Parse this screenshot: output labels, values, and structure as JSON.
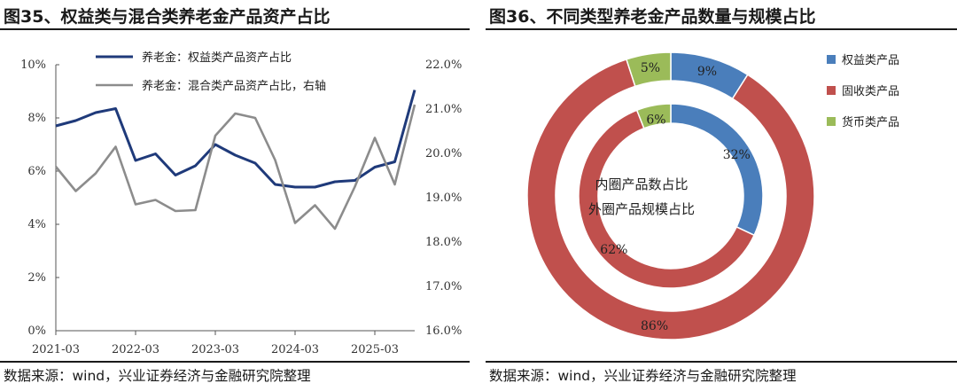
{
  "left_panel": {
    "figure_title": "图35、权益类与混合类养老金产品资产占比",
    "source": "数据来源：wind，兴业证券经济与金融研究院整理"
  },
  "right_panel": {
    "figure_title": "图36、不同类型养老金产品数量与规模占比",
    "source": "数据来源：wind，兴业证券经济与金融研究院整理"
  },
  "chart_data": [
    {
      "type": "line",
      "x_tick_labels": [
        "2021-03",
        "2022-03",
        "2023-03",
        "2024-03",
        "2025-03"
      ],
      "left_axis": {
        "ticks": [
          "0%",
          "2%",
          "4%",
          "6%",
          "8%",
          "10%"
        ],
        "ylim": [
          0,
          10
        ]
      },
      "right_axis": {
        "ticks": [
          "16.0%",
          "17.0%",
          "18.0%",
          "19.0%",
          "20.0%",
          "21.0%",
          "22.0%"
        ],
        "ylim": [
          16,
          22
        ]
      },
      "series": [
        {
          "name": "养老金：权益类产品资产占比",
          "axis": "left",
          "color": "#1f3a7a",
          "values": [
            7.7,
            7.9,
            8.2,
            8.35,
            6.4,
            6.65,
            5.85,
            6.2,
            7.0,
            6.6,
            6.3,
            5.5,
            5.4,
            5.4,
            5.6,
            5.65,
            6.15,
            6.35,
            9.05
          ]
        },
        {
          "name": "养老金：混合类产品资产占比，右轴",
          "axis": "right",
          "color": "#8c8c8c",
          "values": [
            19.7,
            19.15,
            19.55,
            20.15,
            18.85,
            18.95,
            18.7,
            18.72,
            20.4,
            20.9,
            20.8,
            19.85,
            18.43,
            18.83,
            18.3,
            19.25,
            20.35,
            19.3,
            21.1
          ]
        }
      ],
      "legend_position": "top"
    },
    {
      "type": "pie",
      "variant": "double-donut",
      "center_text": [
        "内圈产品数占比",
        "外圈产品规模占比"
      ],
      "legend": [
        {
          "label": "权益类产品",
          "color": "#4a7ebb"
        },
        {
          "label": "固收类产品",
          "color": "#c0504d"
        },
        {
          "label": "货币类产品",
          "color": "#9bbb59"
        }
      ],
      "inner_ring": {
        "description": "产品数占比",
        "slices": [
          {
            "category": "权益类产品",
            "value": 32,
            "label": "32%"
          },
          {
            "category": "固收类产品",
            "value": 62,
            "label": "62%"
          },
          {
            "category": "货币类产品",
            "value": 6,
            "label": "6%"
          }
        ]
      },
      "outer_ring": {
        "description": "产品规模占比",
        "slices": [
          {
            "category": "权益类产品",
            "value": 9,
            "label": "9%"
          },
          {
            "category": "固收类产品",
            "value": 86,
            "label": "86%"
          },
          {
            "category": "货币类产品",
            "value": 5,
            "label": "5%"
          }
        ]
      }
    }
  ]
}
